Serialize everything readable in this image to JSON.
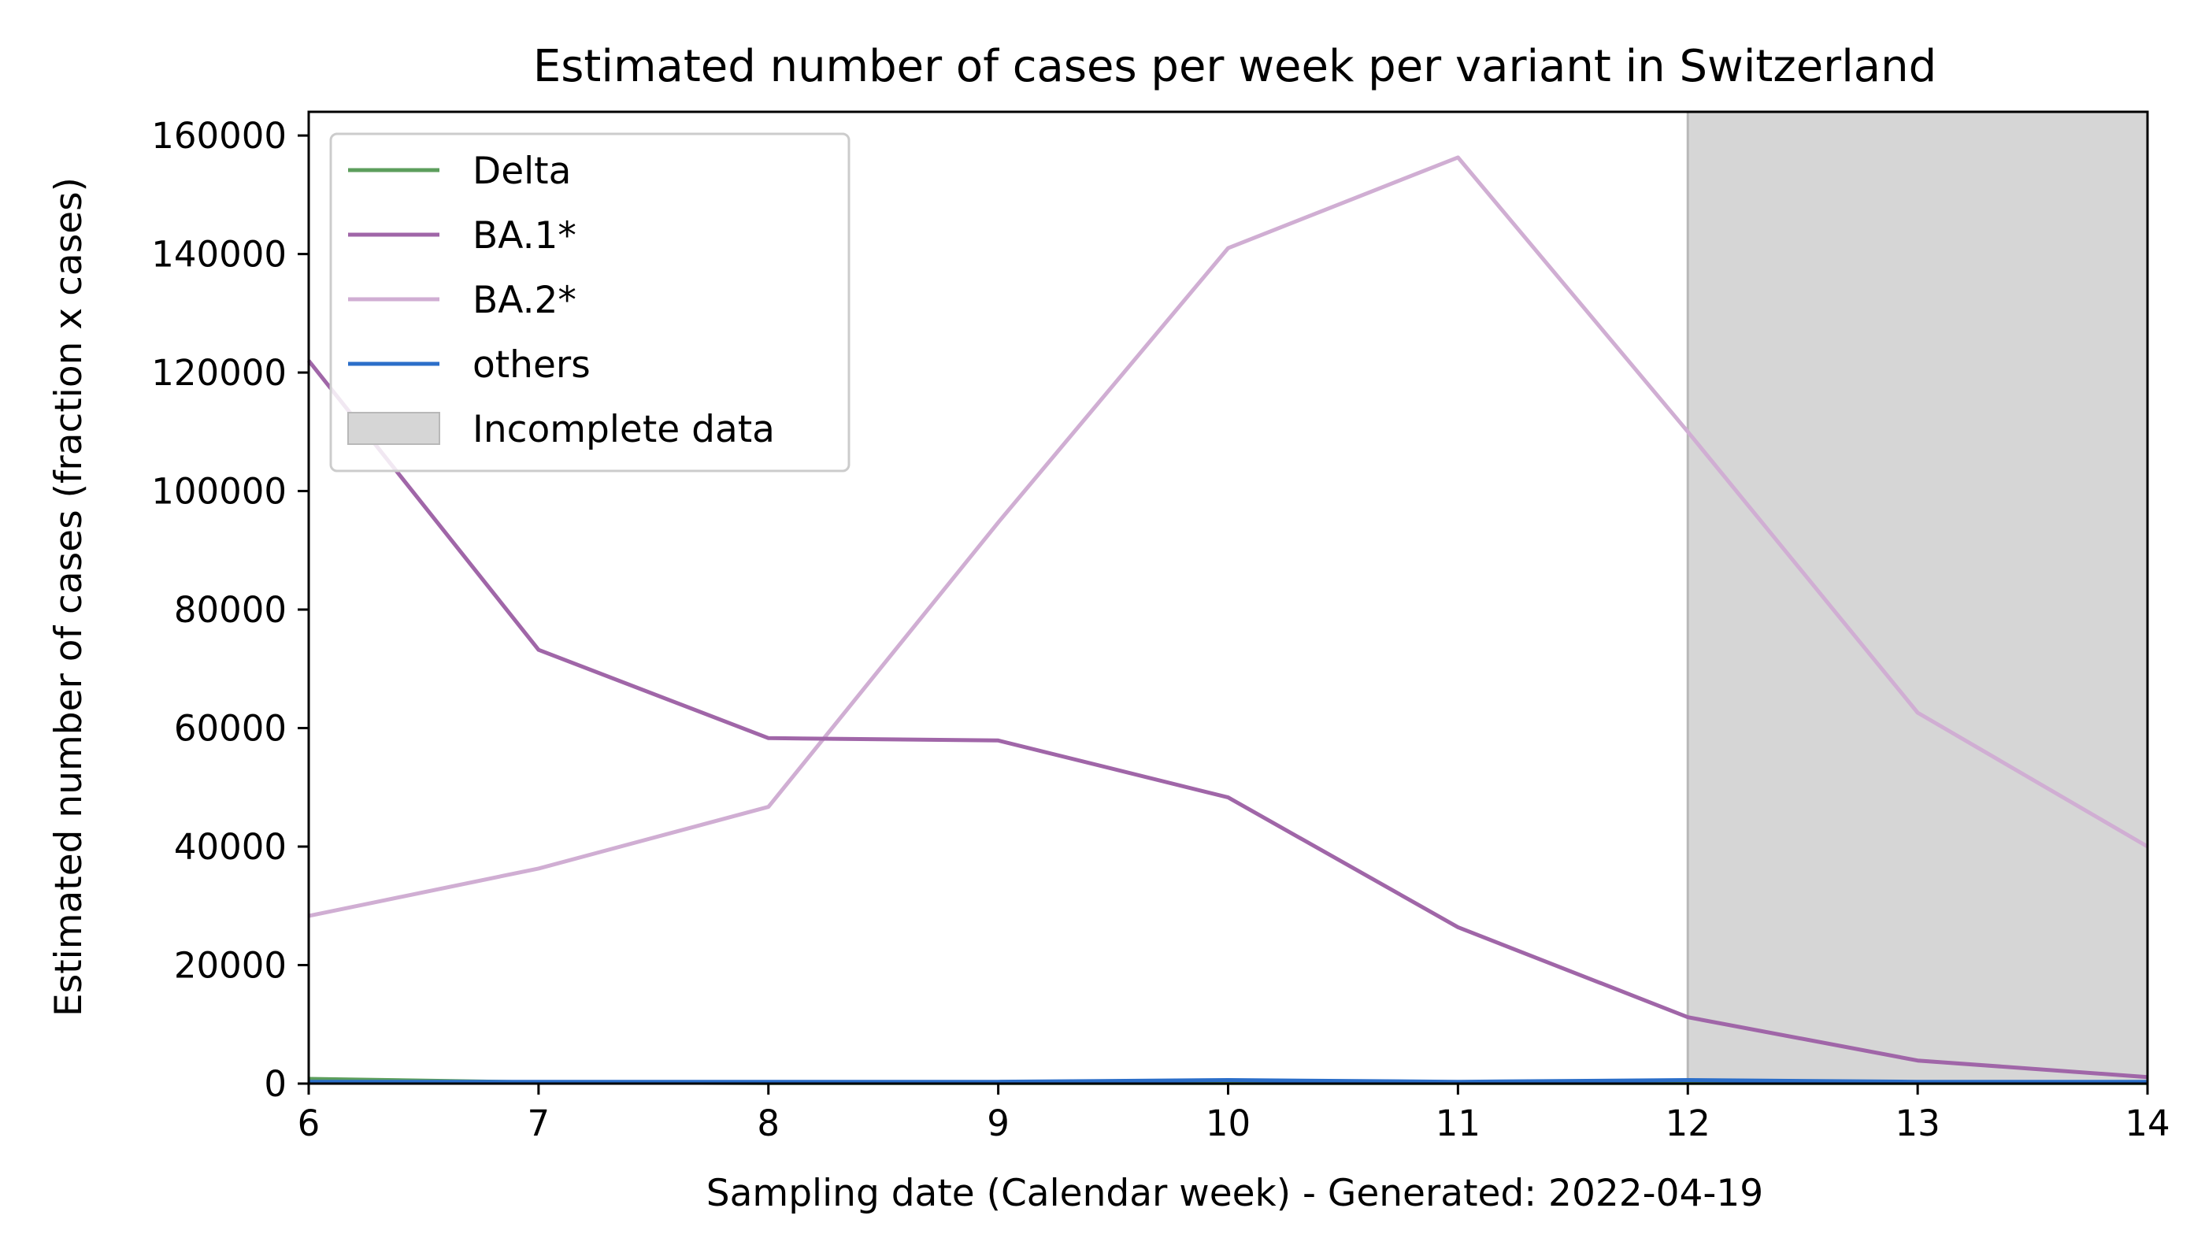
{
  "chart_data": {
    "type": "line",
    "title": "Estimated number of cases per week per variant in Switzerland",
    "xlabel": "Sampling date (Calendar week) - Generated: 2022-04-19",
    "ylabel": "Estimated number of cases (fraction x cases)",
    "xlim": [
      6,
      14
    ],
    "ylim": [
      0,
      164000
    ],
    "x_ticks": [
      6,
      7,
      8,
      9,
      10,
      11,
      12,
      13,
      14
    ],
    "y_ticks": [
      0,
      20000,
      40000,
      60000,
      80000,
      100000,
      120000,
      140000,
      160000
    ],
    "grid": false,
    "legend_position": "upper-left",
    "x": [
      6,
      7,
      8,
      9,
      10,
      11,
      12,
      13,
      14
    ],
    "series": [
      {
        "name": "Delta",
        "color": "#5c9e5c",
        "values": [
          800,
          200,
          100,
          100,
          100,
          100,
          100,
          100,
          100
        ]
      },
      {
        "name": "BA.1*",
        "color": "#a066a8",
        "values": [
          122000,
          73200,
          58300,
          57900,
          48300,
          26400,
          11200,
          3900,
          1100
        ]
      },
      {
        "name": "BA.2*",
        "color": "#d0aed3",
        "values": [
          28300,
          36300,
          46700,
          94700,
          141000,
          156300,
          110000,
          62600,
          40000
        ]
      },
      {
        "name": "others",
        "color": "#2b6ec9",
        "values": [
          300,
          300,
          300,
          300,
          600,
          300,
          600,
          300,
          300
        ]
      }
    ],
    "shaded_region": {
      "label": "Incomplete data",
      "x_start": 12,
      "x_end": 14,
      "color": "#d6d6d6"
    }
  }
}
